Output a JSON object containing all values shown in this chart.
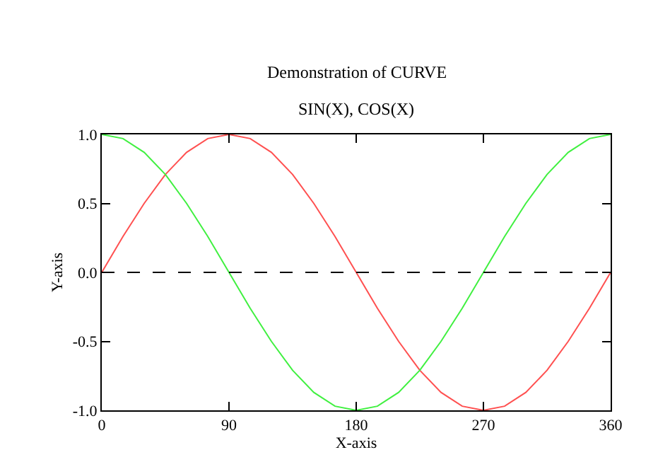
{
  "chart_data": {
    "type": "line",
    "title": "Demonstration of CURVE",
    "subtitle": "SIN(X), COS(X)",
    "xlabel": "X-axis",
    "ylabel": "Y-axis",
    "x": [
      0,
      15,
      30,
      45,
      60,
      75,
      90,
      105,
      120,
      135,
      150,
      165,
      180,
      195,
      210,
      225,
      240,
      255,
      270,
      285,
      300,
      315,
      330,
      345,
      360
    ],
    "series": [
      {
        "color": "#ff5050",
        "values": [
          0,
          0.26,
          0.5,
          0.71,
          0.87,
          0.97,
          1,
          0.97,
          0.87,
          0.71,
          0.5,
          0.26,
          0,
          -0.26,
          -0.5,
          -0.71,
          -0.87,
          -0.97,
          -1,
          -0.97,
          -0.87,
          -0.71,
          -0.5,
          -0.26,
          0
        ]
      },
      {
        "color": "#40f040",
        "values": [
          1,
          0.97,
          0.87,
          0.71,
          0.5,
          0.26,
          0,
          -0.26,
          -0.5,
          -0.71,
          -0.87,
          -0.97,
          -1,
          -0.97,
          -0.87,
          -0.71,
          -0.5,
          -0.26,
          0,
          0.26,
          0.5,
          0.71,
          0.87,
          0.97,
          1
        ]
      }
    ],
    "xlim": [
      0,
      360
    ],
    "xticks": [
      0,
      90,
      180,
      270,
      360
    ],
    "ylim": [
      -1,
      1
    ],
    "yticks": [
      {
        "value": -1,
        "label": "-1.0"
      },
      {
        "value": -0.5,
        "label": "-0.5"
      },
      {
        "value": 0,
        "label": "0.0"
      },
      {
        "value": 0.5,
        "label": "0.5"
      },
      {
        "value": 1,
        "label": "1.0"
      }
    ],
    "ref_lines": [
      {
        "axis": "y",
        "value": 0,
        "color": "#000000",
        "line_style": "dashed"
      }
    ],
    "legend": false,
    "marker": "none",
    "line_style": "solid"
  }
}
